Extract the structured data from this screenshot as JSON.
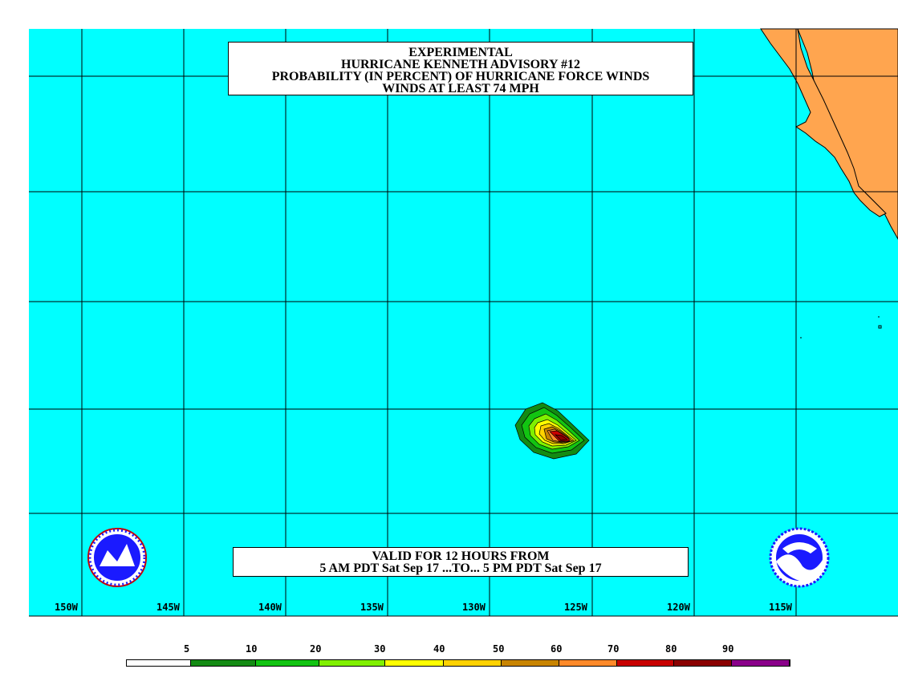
{
  "title": {
    "line1": "EXPERIMENTAL",
    "line2": "HURRICANE KENNETH ADVISORY #12",
    "line3": "PROBABILITY (IN PERCENT) OF HURRICANE FORCE WINDS",
    "line4": "WINDS AT LEAST 74 MPH"
  },
  "valid": {
    "line1": "VALID FOR 12 HOURS FROM",
    "line2": "5 AM PDT Sat Sep 17 ...TO... 5 PM PDT Sat Sep 17"
  },
  "longitude_labels": [
    "150W",
    "145W",
    "140W",
    "135W",
    "130W",
    "125W",
    "120W",
    "115W"
  ],
  "legend": {
    "labels": [
      "5",
      "10",
      "20",
      "30",
      "40",
      "50",
      "60",
      "70",
      "80",
      "90"
    ],
    "colors": [
      "#ffffff",
      "#138b13",
      "#12c412",
      "#80f000",
      "#ffff00",
      "#ffd200",
      "#c88400",
      "#ff8a2a",
      "#c80000",
      "#8a0000",
      "#8a008a"
    ]
  },
  "colors": {
    "ocean": "#00ffff",
    "land": "#ffa54f"
  },
  "icons": {
    "nws_logo": "nws-logo-icon",
    "noaa_logo": "noaa-logo-icon"
  }
}
